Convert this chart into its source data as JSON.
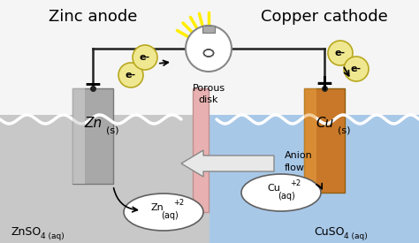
{
  "bg_color": "#f5f5f5",
  "left_solution_color": "#c8c8c8",
  "right_solution_color": "#a8c8e8",
  "wave_color": "#ffffff",
  "zinc_color": "#a8a8a8",
  "zinc_color2": "#d0d0d0",
  "copper_color": "#c87828",
  "copper_color2": "#e8a040",
  "porous_disk_color": "#e8b0b0",
  "electron_circle_color": "#f0e890",
  "electron_circle_edge": "#b8a820",
  "anion_arrow_fill": "#e8e8e8",
  "anion_arrow_edge": "#888888",
  "wire_color": "#222222",
  "bulb_edge": "#888888",
  "title_left": "Zinc anode",
  "title_right": "Copper cathode",
  "label_porous": "Porous\ndisk",
  "label_anion": "Anion\nflow",
  "label_minus": "−",
  "label_plus": "+",
  "label_eminus": "e-",
  "label_znso4": "ZnSO",
  "label_cuso4": "CuSO"
}
